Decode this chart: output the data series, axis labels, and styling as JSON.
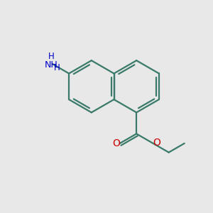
{
  "bg_color": "#e8e8e8",
  "bond_color": "#3a7a6a",
  "bond_width": 1.6,
  "figsize": [
    3.0,
    3.0
  ],
  "dpi": 100,
  "n_color": "#0000cc",
  "o_color": "#cc0000",
  "n_label": "NH",
  "h_label": "H",
  "o1_label": "O",
  "o2_label": "O",
  "xlim": [
    0,
    10
  ],
  "ylim": [
    0,
    10
  ]
}
